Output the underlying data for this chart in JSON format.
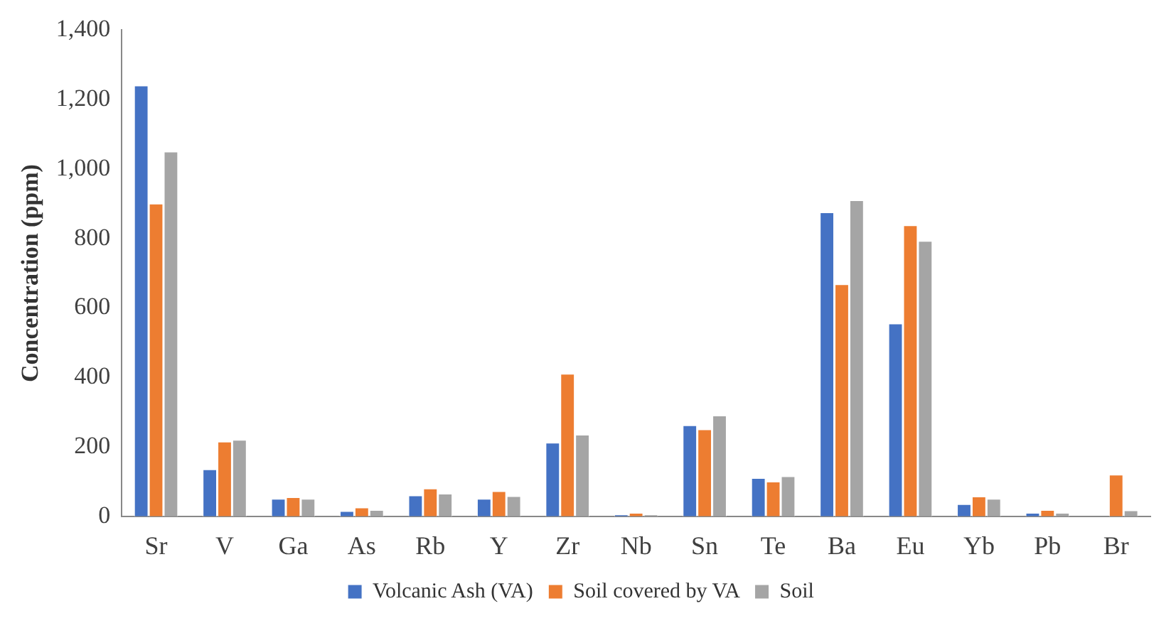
{
  "chart_data": {
    "type": "bar",
    "ylabel": "Concentration (ppm)",
    "categories": [
      "Sr",
      "V",
      "Ga",
      "As",
      "Rb",
      "Y",
      "Zr",
      "Nb",
      "Sn",
      "Te",
      "Ba",
      "Eu",
      "Yb",
      "Pb",
      "Br"
    ],
    "series": [
      {
        "name": "Volcanic Ash (VA)",
        "color": "#4472c4",
        "values": [
          1240,
          135,
          50,
          15,
          60,
          50,
          212,
          5,
          262,
          110,
          875,
          555,
          35,
          10,
          0
        ]
      },
      {
        "name": "Soil covered by VA",
        "color": "#ed7d31",
        "values": [
          900,
          215,
          55,
          25,
          80,
          72,
          410,
          10,
          250,
          100,
          668,
          838,
          57,
          18,
          120
        ]
      },
      {
        "name": "Soil",
        "color": "#a5a5a5",
        "values": [
          1050,
          220,
          50,
          18,
          65,
          58,
          235,
          5,
          290,
          115,
          910,
          793,
          50,
          10,
          17
        ]
      }
    ],
    "ylim": [
      0,
      1400
    ],
    "yticks": [
      {
        "value": 0,
        "label": "0"
      },
      {
        "value": 200,
        "label": "200"
      },
      {
        "value": 400,
        "label": "400"
      },
      {
        "value": 600,
        "label": "600"
      },
      {
        "value": 800,
        "label": "800"
      },
      {
        "value": 1000,
        "label": "1,000"
      },
      {
        "value": 1200,
        "label": "1,200"
      },
      {
        "value": 1400,
        "label": "1,400"
      }
    ],
    "grid": false,
    "legend": "bottom"
  }
}
